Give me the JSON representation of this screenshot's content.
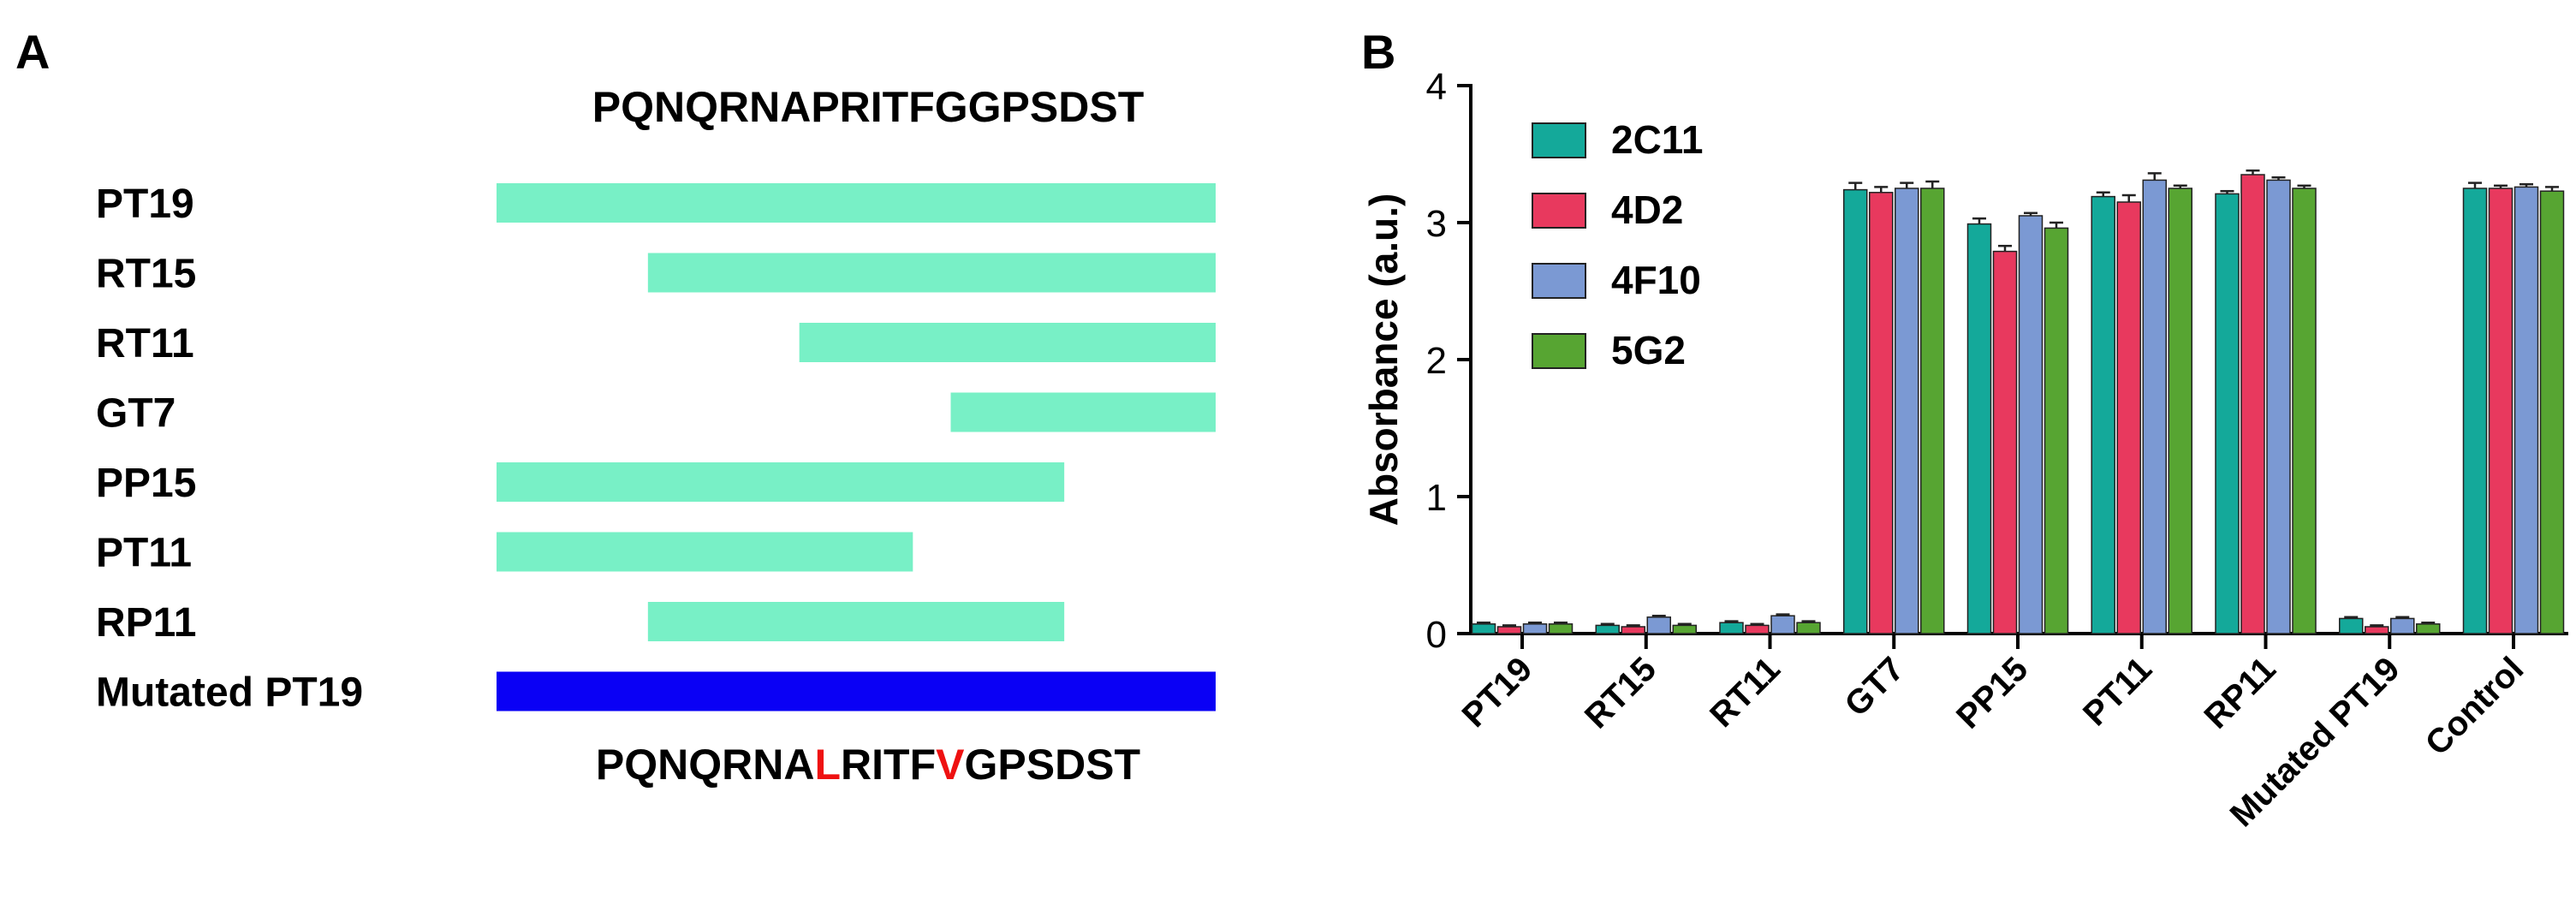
{
  "panel_a": {
    "label": "A",
    "sequence_top": "PQNQRNAPRITFGGPSDST",
    "sequence_bottom": {
      "segments": [
        {
          "text": "PQNQRNA",
          "mutated": false
        },
        {
          "text": "L",
          "mutated": true
        },
        {
          "text": "RITF",
          "mutated": false
        },
        {
          "text": "V",
          "mutated": true
        },
        {
          "text": "GPSDST",
          "mutated": false
        }
      ]
    },
    "peptides": [
      {
        "name": "PT19",
        "start": 1,
        "end": 19,
        "mutated": false
      },
      {
        "name": "RT15",
        "start": 5,
        "end": 19,
        "mutated": false
      },
      {
        "name": "RT11",
        "start": 9,
        "end": 19,
        "mutated": false
      },
      {
        "name": "GT7",
        "start": 13,
        "end": 19,
        "mutated": false
      },
      {
        "name": "PP15",
        "start": 1,
        "end": 15,
        "mutated": false
      },
      {
        "name": "PT11",
        "start": 1,
        "end": 11,
        "mutated": false
      },
      {
        "name": "RP11",
        "start": 5,
        "end": 15,
        "mutated": false
      },
      {
        "name": "Mutated PT19",
        "start": 1,
        "end": 19,
        "mutated": true
      }
    ],
    "colors": {
      "bar": "#78f0c6",
      "mutated_bar": "#0a00f5",
      "mutation_text": "#ee1111"
    }
  },
  "panel_b": {
    "label": "B",
    "chart_data": {
      "type": "bar",
      "title": "",
      "xlabel": "",
      "ylabel": "Absorbance (a.u.)",
      "ylim": [
        0,
        4
      ],
      "yticks": [
        "0",
        "1",
        "2",
        "3",
        "4"
      ],
      "grid": false,
      "legend_position": "top-left",
      "categories": [
        "PT19",
        "RT15",
        "RT11",
        "GT7",
        "PP15",
        "PT11",
        "RP11",
        "Mutated PT19",
        "Control"
      ],
      "series": [
        {
          "name": "2C11",
          "color": "#14a99a",
          "values": [
            0.07,
            0.06,
            0.08,
            3.24,
            2.99,
            3.19,
            3.21,
            0.11,
            3.25
          ],
          "errors": [
            0.01,
            0.01,
            0.01,
            0.05,
            0.04,
            0.03,
            0.02,
            0.01,
            0.04
          ]
        },
        {
          "name": "4D2",
          "color": "#e8395e",
          "values": [
            0.05,
            0.05,
            0.06,
            3.22,
            2.79,
            3.15,
            3.35,
            0.05,
            3.25
          ],
          "errors": [
            0.01,
            0.01,
            0.01,
            0.04,
            0.04,
            0.05,
            0.03,
            0.01,
            0.02
          ]
        },
        {
          "name": "4F10",
          "color": "#7b99d3",
          "values": [
            0.07,
            0.12,
            0.13,
            3.25,
            3.05,
            3.31,
            3.31,
            0.11,
            3.26
          ],
          "errors": [
            0.01,
            0.01,
            0.01,
            0.04,
            0.02,
            0.05,
            0.02,
            0.01,
            0.02
          ]
        },
        {
          "name": "5G2",
          "color": "#57a532",
          "values": [
            0.07,
            0.06,
            0.08,
            3.25,
            2.96,
            3.25,
            3.25,
            0.07,
            3.23
          ],
          "errors": [
            0.01,
            0.01,
            0.01,
            0.05,
            0.04,
            0.02,
            0.02,
            0.01,
            0.03
          ]
        }
      ]
    }
  }
}
